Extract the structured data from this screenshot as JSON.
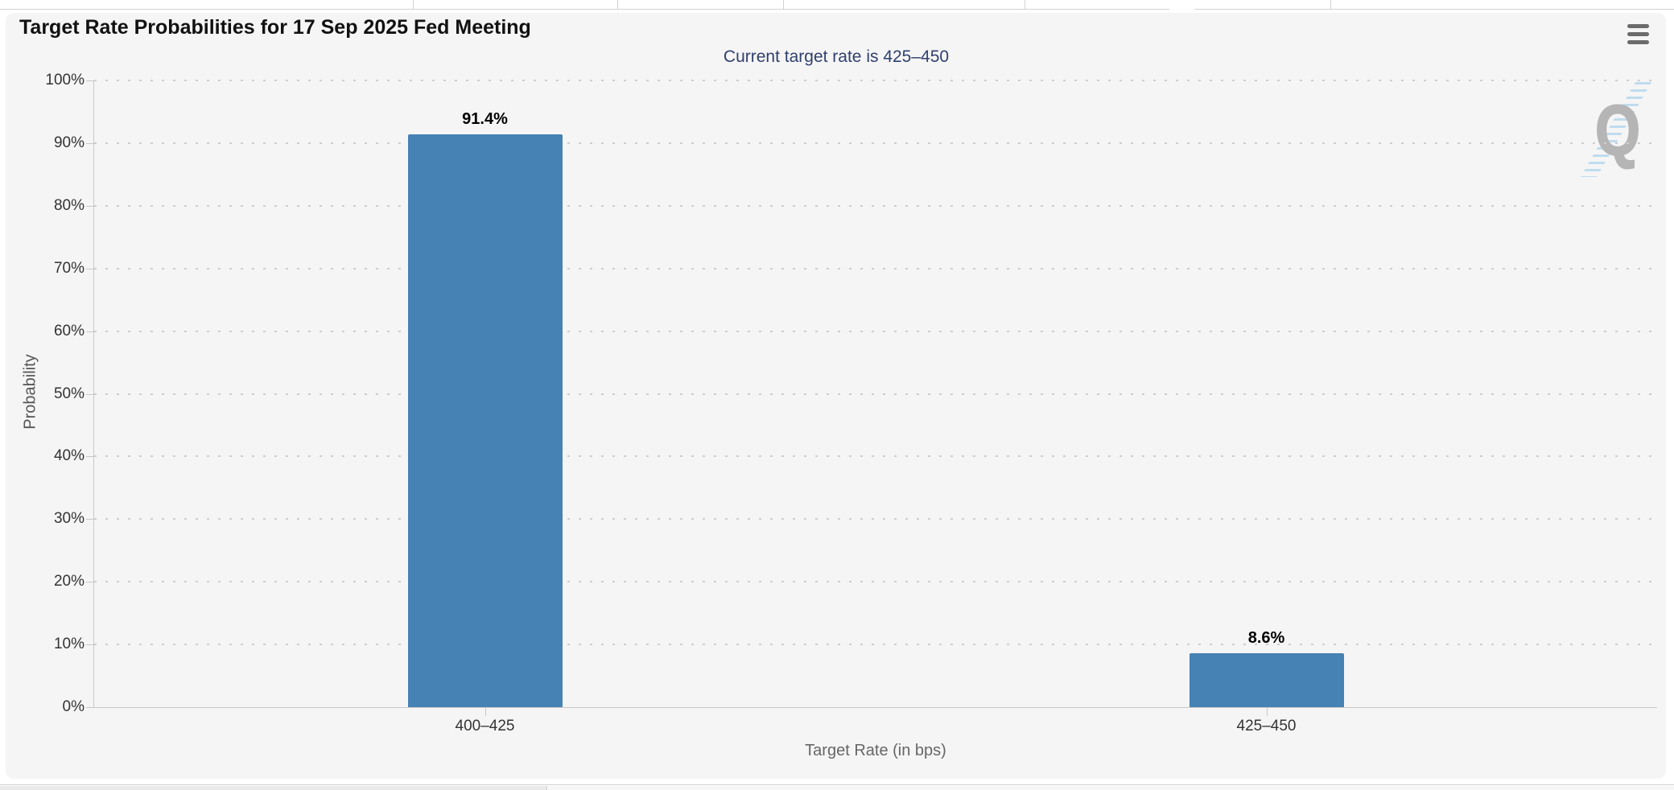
{
  "chart": {
    "title": "Target Rate Probabilities for 17 Sep 2025 Fed Meeting",
    "subtitle": "Current target rate is 425–450",
    "watermark_letter": "Q",
    "menu_icon": "hamburger-menu-icon"
  },
  "chart_data": {
    "type": "bar",
    "title": "Target Rate Probabilities for 17 Sep 2025 Fed Meeting",
    "subtitle": "Current target rate is 425–450",
    "categories": [
      "400–425",
      "425–450"
    ],
    "values": [
      91.4,
      8.6
    ],
    "data_labels": [
      "91.4%",
      "8.6%"
    ],
    "xlabel": "Target Rate (in bps)",
    "ylabel": "Probability",
    "ylim": [
      0,
      100
    ],
    "ytick_step": 10,
    "ytick_labels": [
      "0%",
      "10%",
      "20%",
      "30%",
      "40%",
      "50%",
      "60%",
      "70%",
      "80%",
      "90%",
      "100%"
    ],
    "grid": "horizontal-dotted",
    "legend": "none"
  },
  "colors": {
    "bar": "#4682b4",
    "subtitle_text": "#30406e",
    "panel_bg": "#f5f5f5",
    "axis_line": "#c8c8c8",
    "grid_dot": "#cdcdcd",
    "tick_label": "#333333",
    "axis_title": "#666666",
    "watermark_gray": "#b5b5b5",
    "watermark_blue": "#aed3ec"
  }
}
